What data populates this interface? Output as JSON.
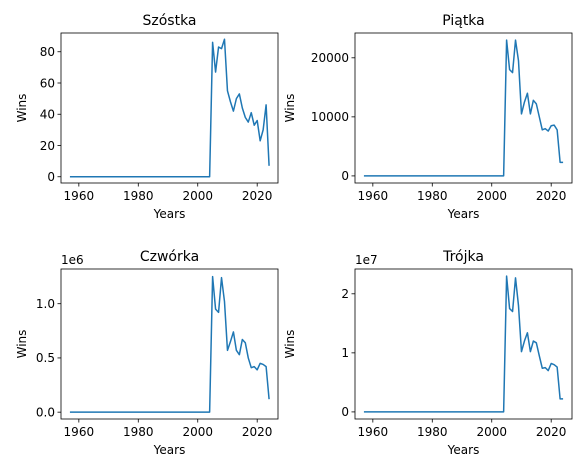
{
  "chart_data": [
    {
      "type": "line",
      "title": "Szóstka",
      "xlabel": "Years",
      "ylabel": "Wins",
      "offset_label": "",
      "xlim": [
        1954,
        2027
      ],
      "ylim": [
        -4,
        92
      ],
      "xticks": [
        1960,
        1980,
        2000,
        2020
      ],
      "yticks": [
        0,
        20,
        40,
        60,
        80
      ],
      "yticklabels": [
        "0",
        "20",
        "40",
        "60",
        "80"
      ],
      "line_color": "#1f77b4",
      "series": [
        {
          "x": [
            1957,
            2004,
            2005,
            2006,
            2007,
            2008,
            2009,
            2010,
            2011,
            2012,
            2013,
            2014,
            2015,
            2016,
            2017,
            2018,
            2019,
            2020,
            2021,
            2022,
            2023,
            2024
          ],
          "y": [
            0,
            0,
            86,
            67,
            83,
            82,
            88,
            55,
            48,
            42,
            50,
            53,
            44,
            38,
            35,
            41,
            33,
            36,
            23,
            30,
            46,
            7
          ]
        }
      ]
    },
    {
      "type": "line",
      "title": "Piątka",
      "xlabel": "Years",
      "ylabel": "Wins",
      "offset_label": "",
      "xlim": [
        1954,
        2027
      ],
      "ylim": [
        -1200,
        24200
      ],
      "xticks": [
        1960,
        1980,
        2000,
        2020
      ],
      "yticks": [
        0,
        10000,
        20000
      ],
      "yticklabels": [
        "0",
        "10000",
        "20000"
      ],
      "line_color": "#1f77b4",
      "series": [
        {
          "x": [
            1957,
            2004,
            2005,
            2006,
            2007,
            2008,
            2009,
            2010,
            2011,
            2012,
            2013,
            2014,
            2015,
            2016,
            2017,
            2018,
            2019,
            2020,
            2021,
            2022,
            2023,
            2024
          ],
          "y": [
            0,
            0,
            23000,
            18000,
            17500,
            23000,
            19500,
            10500,
            12500,
            14000,
            10500,
            12800,
            12200,
            10000,
            7800,
            8000,
            7600,
            8500,
            8600,
            7800,
            2300,
            2300
          ]
        }
      ]
    },
    {
      "type": "line",
      "title": "Czwórka",
      "xlabel": "Years",
      "ylabel": "Wins",
      "offset_label": "1e6",
      "xlim": [
        1954,
        2027
      ],
      "ylim": [
        -0.063,
        1.32
      ],
      "xticks": [
        1960,
        1980,
        2000,
        2020
      ],
      "yticks": [
        0.0,
        0.5,
        1.0
      ],
      "yticklabels": [
        "0.0",
        "0.5",
        "1.0"
      ],
      "line_color": "#1f77b4",
      "series": [
        {
          "x": [
            1957,
            2004,
            2005,
            2006,
            2007,
            2008,
            2009,
            2010,
            2011,
            2012,
            2013,
            2014,
            2015,
            2016,
            2017,
            2018,
            2019,
            2020,
            2021,
            2022,
            2023,
            2024
          ],
          "y": [
            0,
            0,
            1.25,
            0.95,
            0.92,
            1.24,
            1.02,
            0.57,
            0.65,
            0.74,
            0.57,
            0.53,
            0.67,
            0.64,
            0.5,
            0.41,
            0.42,
            0.39,
            0.45,
            0.44,
            0.42,
            0.12
          ]
        }
      ]
    },
    {
      "type": "line",
      "title": "Trójka",
      "xlabel": "Years",
      "ylabel": "Wins",
      "offset_label": "1e7",
      "xlim": [
        1954,
        2027
      ],
      "ylim": [
        -0.12,
        2.42
      ],
      "xticks": [
        1960,
        1980,
        2000,
        2020
      ],
      "yticks": [
        0,
        1,
        2
      ],
      "yticklabels": [
        "0",
        "1",
        "2"
      ],
      "line_color": "#1f77b4",
      "series": [
        {
          "x": [
            1957,
            2004,
            2005,
            2006,
            2007,
            2008,
            2009,
            2010,
            2011,
            2012,
            2013,
            2014,
            2015,
            2016,
            2017,
            2018,
            2019,
            2020,
            2021,
            2022,
            2023,
            2024
          ],
          "y": [
            0,
            0,
            2.3,
            1.75,
            1.7,
            2.27,
            1.8,
            1.02,
            1.2,
            1.34,
            1.02,
            1.2,
            1.17,
            0.95,
            0.74,
            0.75,
            0.7,
            0.82,
            0.8,
            0.76,
            0.22,
            0.22
          ]
        }
      ]
    }
  ]
}
